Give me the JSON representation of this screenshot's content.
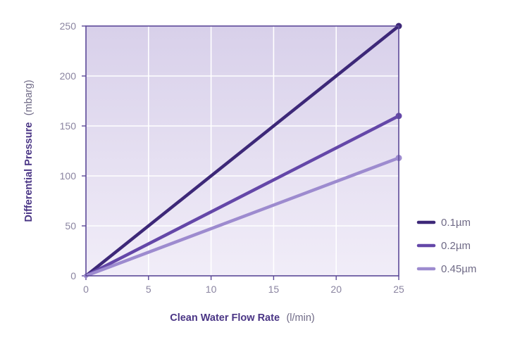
{
  "chart_data": {
    "type": "line",
    "xlabel": {
      "main": "Clean Water Flow Rate",
      "unit": "(l/min)"
    },
    "ylabel": {
      "main": "Differential Pressure",
      "unit": "(mbarg)"
    },
    "xlim": [
      0,
      25
    ],
    "ylim": [
      0,
      250
    ],
    "xticks": [
      0,
      5,
      10,
      15,
      20,
      25
    ],
    "yticks": [
      0,
      50,
      100,
      150,
      200,
      250
    ],
    "grid": true,
    "legend_position": "bottom-right, outside plot",
    "series": [
      {
        "name": "0.1µm",
        "color": "#3d2878",
        "x": [
          0,
          25
        ],
        "y": [
          0,
          250
        ]
      },
      {
        "name": "0.2µm",
        "color": "#6447a8",
        "x": [
          0,
          25
        ],
        "y": [
          0,
          160
        ]
      },
      {
        "name": "0.45µm",
        "color": "#9d8bcf",
        "x": [
          0,
          25
        ],
        "y": [
          0,
          118
        ]
      }
    ]
  },
  "colors": {
    "plot_background_top": "#d8d0ea",
    "plot_background_bottom": "#f1edf8",
    "frame": "#5b4897",
    "grid": "#ffffff"
  }
}
